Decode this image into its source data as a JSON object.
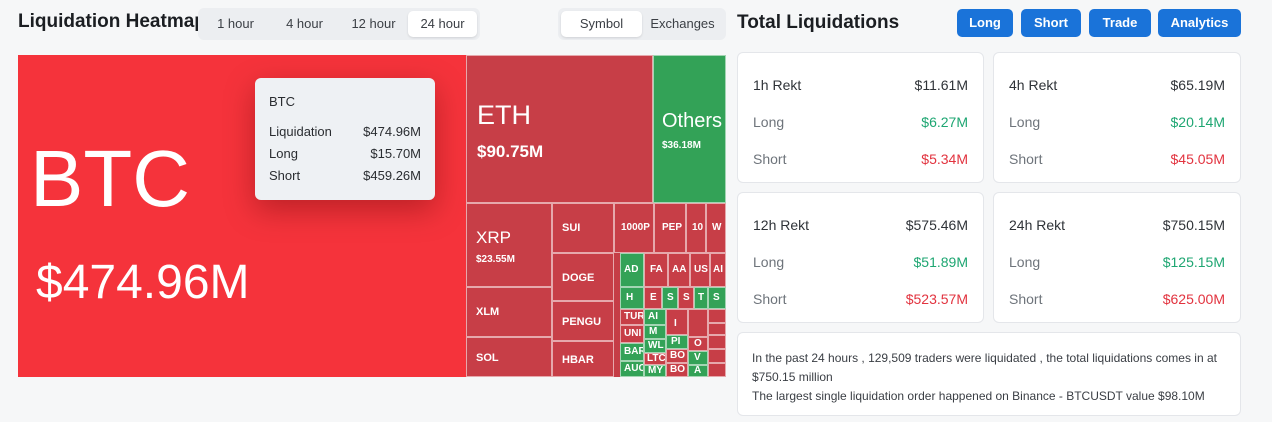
{
  "header": {
    "title": "Liquidation Heatmap",
    "timeframes": [
      "1 hour",
      "4 hour",
      "12 hour",
      "24 hour"
    ],
    "active_timeframe": "24 hour",
    "group_options": [
      "Symbol",
      "Exchanges"
    ],
    "active_group": "Symbol"
  },
  "heatmap": {
    "colors": {
      "long_dominant": "#33a257",
      "short_dominant": "#c73e47",
      "highlight": "#f5333b"
    },
    "tiles": [
      {
        "symbol": "BTC",
        "value": "$474.96M"
      },
      {
        "symbol": "ETH",
        "value": "$90.75M"
      },
      {
        "symbol": "Others",
        "value": "$36.18M"
      },
      {
        "symbol": "XRP",
        "value": "$23.55M"
      },
      {
        "symbol": "SUI"
      },
      {
        "symbol": "1000P"
      },
      {
        "symbol": "PEP"
      },
      {
        "symbol": "10"
      },
      {
        "symbol": "W"
      },
      {
        "symbol": "DOGE"
      },
      {
        "symbol": "XLM"
      },
      {
        "symbol": "PENGU"
      },
      {
        "symbol": "SOL"
      },
      {
        "symbol": "HBAR"
      },
      {
        "symbol": "AD"
      },
      {
        "symbol": "FA"
      },
      {
        "symbol": "AA"
      },
      {
        "symbol": "US"
      },
      {
        "symbol": "AI"
      },
      {
        "symbol": "H"
      },
      {
        "symbol": "E"
      },
      {
        "symbol": "S"
      },
      {
        "symbol": "S"
      },
      {
        "symbol": "T"
      },
      {
        "symbol": "S"
      },
      {
        "symbol": "TUR"
      },
      {
        "symbol": "UNI"
      },
      {
        "symbol": "BAR"
      },
      {
        "symbol": "AUC"
      },
      {
        "symbol": "AI"
      },
      {
        "symbol": "M"
      },
      {
        "symbol": "WL"
      },
      {
        "symbol": "LTC"
      },
      {
        "symbol": "MY"
      },
      {
        "symbol": "I"
      },
      {
        "symbol": "PI"
      },
      {
        "symbol": "BO"
      },
      {
        "symbol": "BO"
      },
      {
        "symbol": "O"
      },
      {
        "symbol": "V"
      },
      {
        "symbol": "A"
      }
    ]
  },
  "tooltip": {
    "title": "BTC",
    "rows": [
      {
        "label": "Liquidation",
        "value": "$474.96M"
      },
      {
        "label": "Long",
        "value": "$15.70M"
      },
      {
        "label": "Short",
        "value": "$459.26M"
      }
    ]
  },
  "right": {
    "title": "Total Liquidations",
    "buttons": [
      "Long",
      "Short",
      "Trade",
      "Analytics"
    ],
    "cards": [
      {
        "label": "1h Rekt",
        "total": "$11.61M",
        "long_label": "Long",
        "long": "$6.27M",
        "short_label": "Short",
        "short": "$5.34M"
      },
      {
        "label": "4h Rekt",
        "total": "$65.19M",
        "long_label": "Long",
        "long": "$20.14M",
        "short_label": "Short",
        "short": "$45.05M"
      },
      {
        "label": "12h Rekt",
        "total": "$575.46M",
        "long_label": "Long",
        "long": "$51.89M",
        "short_label": "Short",
        "short": "$523.57M"
      },
      {
        "label": "24h Rekt",
        "total": "$750.15M",
        "long_label": "Long",
        "long": "$125.15M",
        "short_label": "Short",
        "short": "$625.00M"
      }
    ],
    "summary_line1": "In the past 24 hours , 129,509 traders were liquidated , the total liquidations comes in at $750.15 million",
    "summary_line2": "The largest single liquidation order happened on Binance - BTCUSDT value $98.10M"
  }
}
